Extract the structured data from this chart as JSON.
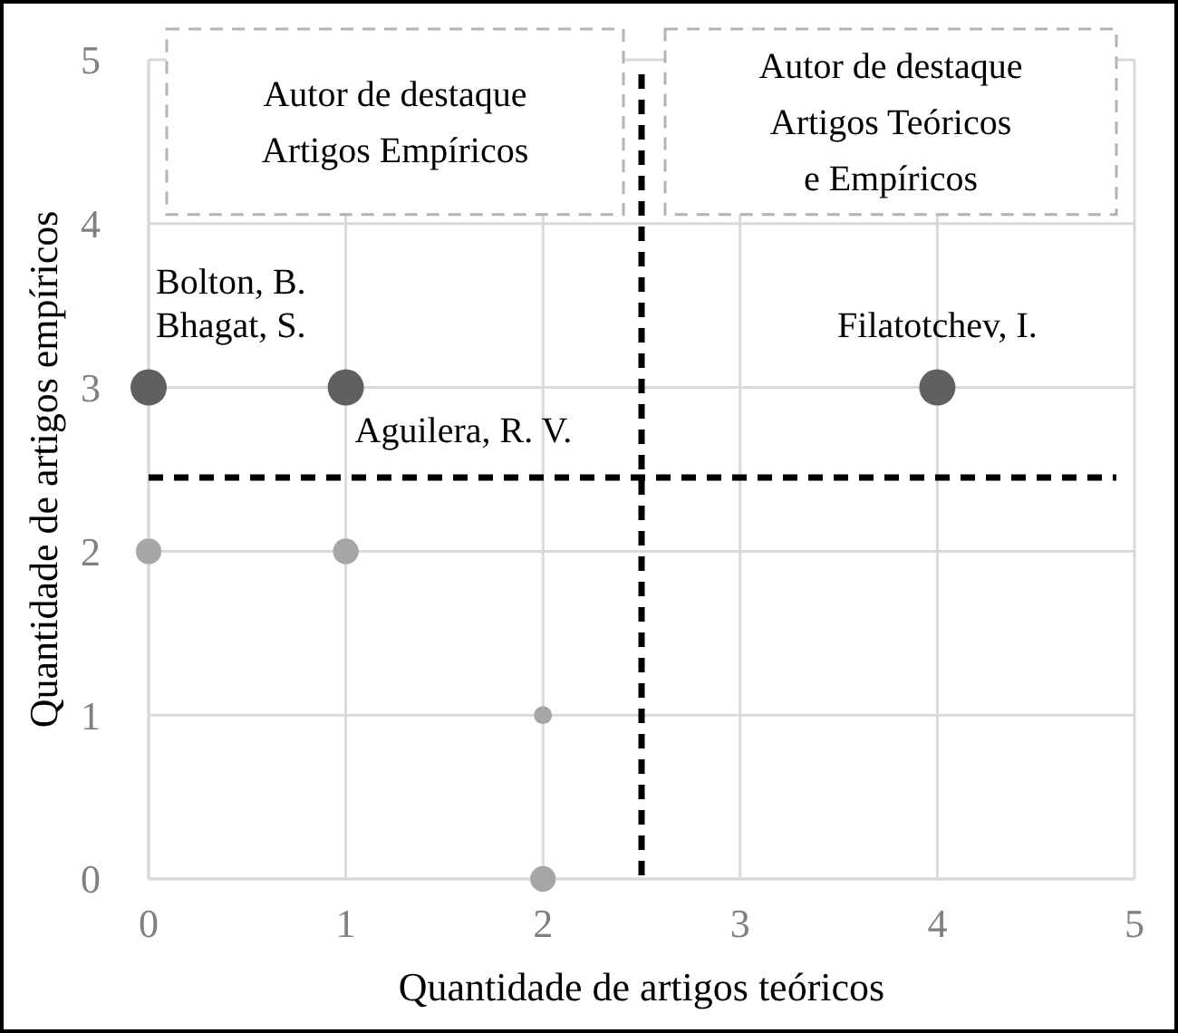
{
  "chart_data": {
    "type": "bubble",
    "xlabel": "Quantidade de artigos teóricos",
    "ylabel": "Quantidade de artigos empíricos",
    "xlim": [
      0,
      5
    ],
    "ylim": [
      0,
      5
    ],
    "xticks": [
      0,
      1,
      2,
      3,
      4,
      5
    ],
    "yticks": [
      0,
      1,
      2,
      3,
      4,
      5
    ],
    "grid": true,
    "series": [
      {
        "color": "#606060",
        "x": [
          0,
          1,
          4
        ],
        "values": [
          3,
          3,
          3
        ],
        "sizes": [
          1,
          1,
          1
        ]
      },
      {
        "color": "#a6a6a6",
        "x": [
          0,
          1,
          2,
          2
        ],
        "values": [
          2,
          2,
          1,
          0
        ],
        "sizes": [
          0.5,
          0.5,
          0.25,
          0.5
        ]
      }
    ],
    "ref_lines": [
      {
        "axis": "y",
        "value": 2.45,
        "color": "#000000",
        "line_style": "dashed"
      },
      {
        "axis": "x",
        "value": 2.5,
        "color": "#000000",
        "line_style": "dashed"
      }
    ],
    "annotations": [
      "Autor de destaque\nArtigos Empíricos",
      "Autor de destaque\nArtigos Teóricos\ne Empíricos",
      {
        "text": "Bolton, B.",
        "x": 0,
        "y": 3
      },
      {
        "text": "Bhagat, S.",
        "x": 0,
        "y": 3
      },
      {
        "text": "Aguilera, R. V.",
        "x": 1,
        "y": 3
      },
      {
        "text": "Filatotchev, I.",
        "x": 4,
        "y": 3
      }
    ]
  }
}
